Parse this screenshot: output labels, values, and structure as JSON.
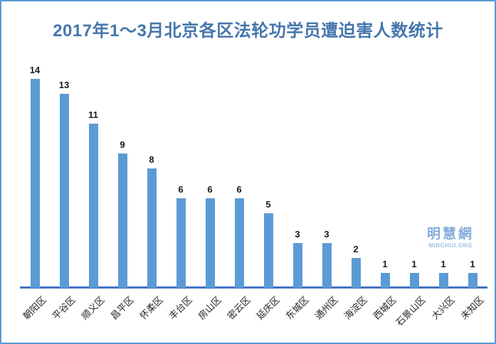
{
  "page": {
    "title": "2017年1～3月北京各区法轮功学员遭迫害人数统计"
  },
  "watermark": {
    "line1": "明慧網",
    "line2": "MINGHUI.ORG"
  },
  "colors": {
    "bar": "#5B9BD5",
    "axis_line": "#4472C4",
    "title_text": "#4576AD",
    "frame_border": "#5B9BD5",
    "value_label": "#1a1a1a",
    "category_label": "#262626",
    "watermark": "#83ACDB"
  },
  "chart_data": {
    "type": "bar",
    "title": "2017年1～3月北京各区法轮功学员遭迫害人数统计",
    "categories": [
      "朝阳区",
      "平谷区",
      "顺义区",
      "昌平区",
      "怀柔区",
      "丰台区",
      "房山区",
      "密云区",
      "延庆区",
      "东城区",
      "通州区",
      "海淀区",
      "西城区",
      "石景山区",
      "大兴区",
      "未知区"
    ],
    "values": [
      14,
      13,
      11,
      9,
      8,
      6,
      6,
      6,
      5,
      3,
      3,
      2,
      1,
      1,
      1,
      1
    ],
    "xlabel": "",
    "ylabel": "",
    "ylim": [
      0,
      14
    ],
    "grid": false,
    "legend": "none",
    "data_labels": true,
    "bar_orientation": "vertical",
    "category_label_rotation_deg": -45
  }
}
